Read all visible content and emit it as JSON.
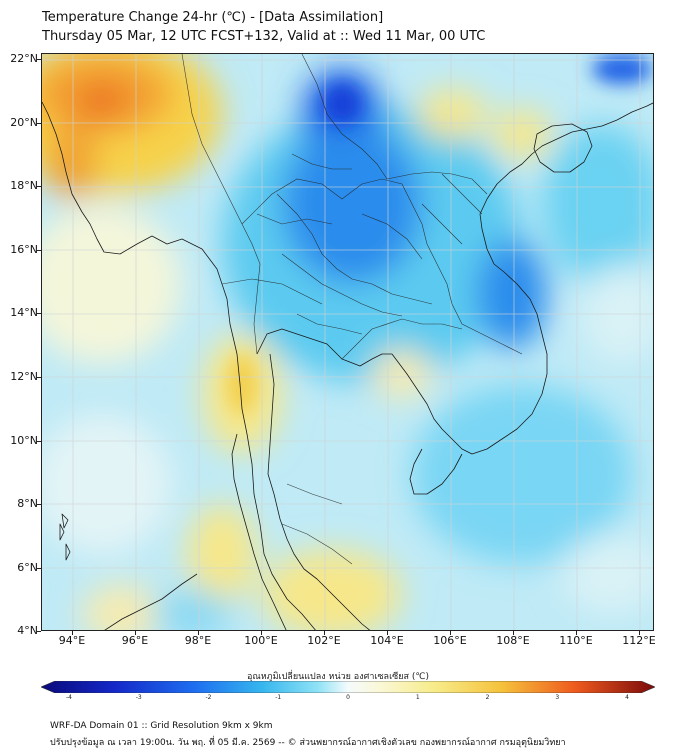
{
  "title": {
    "line1": "Temperature Change 24-hr (℃) - [Data Assimilation]",
    "line2": "Thursday 05 Mar, 12 UTC FCST+132, Valid at :: Wed 11 Mar, 00 UTC"
  },
  "map": {
    "lat_range": [
      4,
      22
    ],
    "lon_range": [
      93,
      112.5
    ],
    "lat_labels": [
      "22°N",
      "20°N",
      "18°N",
      "16°N",
      "14°N",
      "12°N",
      "10°N",
      "8°N",
      "6°N",
      "4°N"
    ],
    "lon_labels": [
      "94°E",
      "96°E",
      "98°E",
      "100°E",
      "102°E",
      "104°E",
      "106°E",
      "108°E",
      "110°E",
      "112°E"
    ],
    "field": "24-hour temperature change (°C)"
  },
  "colorbar": {
    "title": "อุณหภูมิเปลี่ยนแปลง หน่วย องศาเซลเซียส (℃)",
    "tick_labels": [
      "-4",
      "-3",
      "-2",
      "-1",
      "0",
      "1",
      "2",
      "3",
      "4"
    ],
    "range": [
      -4,
      4
    ],
    "colors": [
      "#0a0a7a",
      "#1428c8",
      "#1e6ef0",
      "#36b6ee",
      "#8ee2f6",
      "#e6f7fb",
      "#fbf8d8",
      "#f7ec8a",
      "#f5c23c",
      "#ee7a1e",
      "#d42018",
      "#8a0a0a"
    ]
  },
  "footer": {
    "line1": "WRF-DA Domain 01 :: Grid Resolution 9km x 9km",
    "line2": "ปรับปรุงข้อมูล ณ เวลา 19:00น. วัน พฤ. ที่ 05 มี.ค. 2569 -- © ส่วนพยากรณ์อากาศเชิงตัวเลข กองพยากรณ์อากาศ กรมอุตุนิยมวิทยา"
  }
}
